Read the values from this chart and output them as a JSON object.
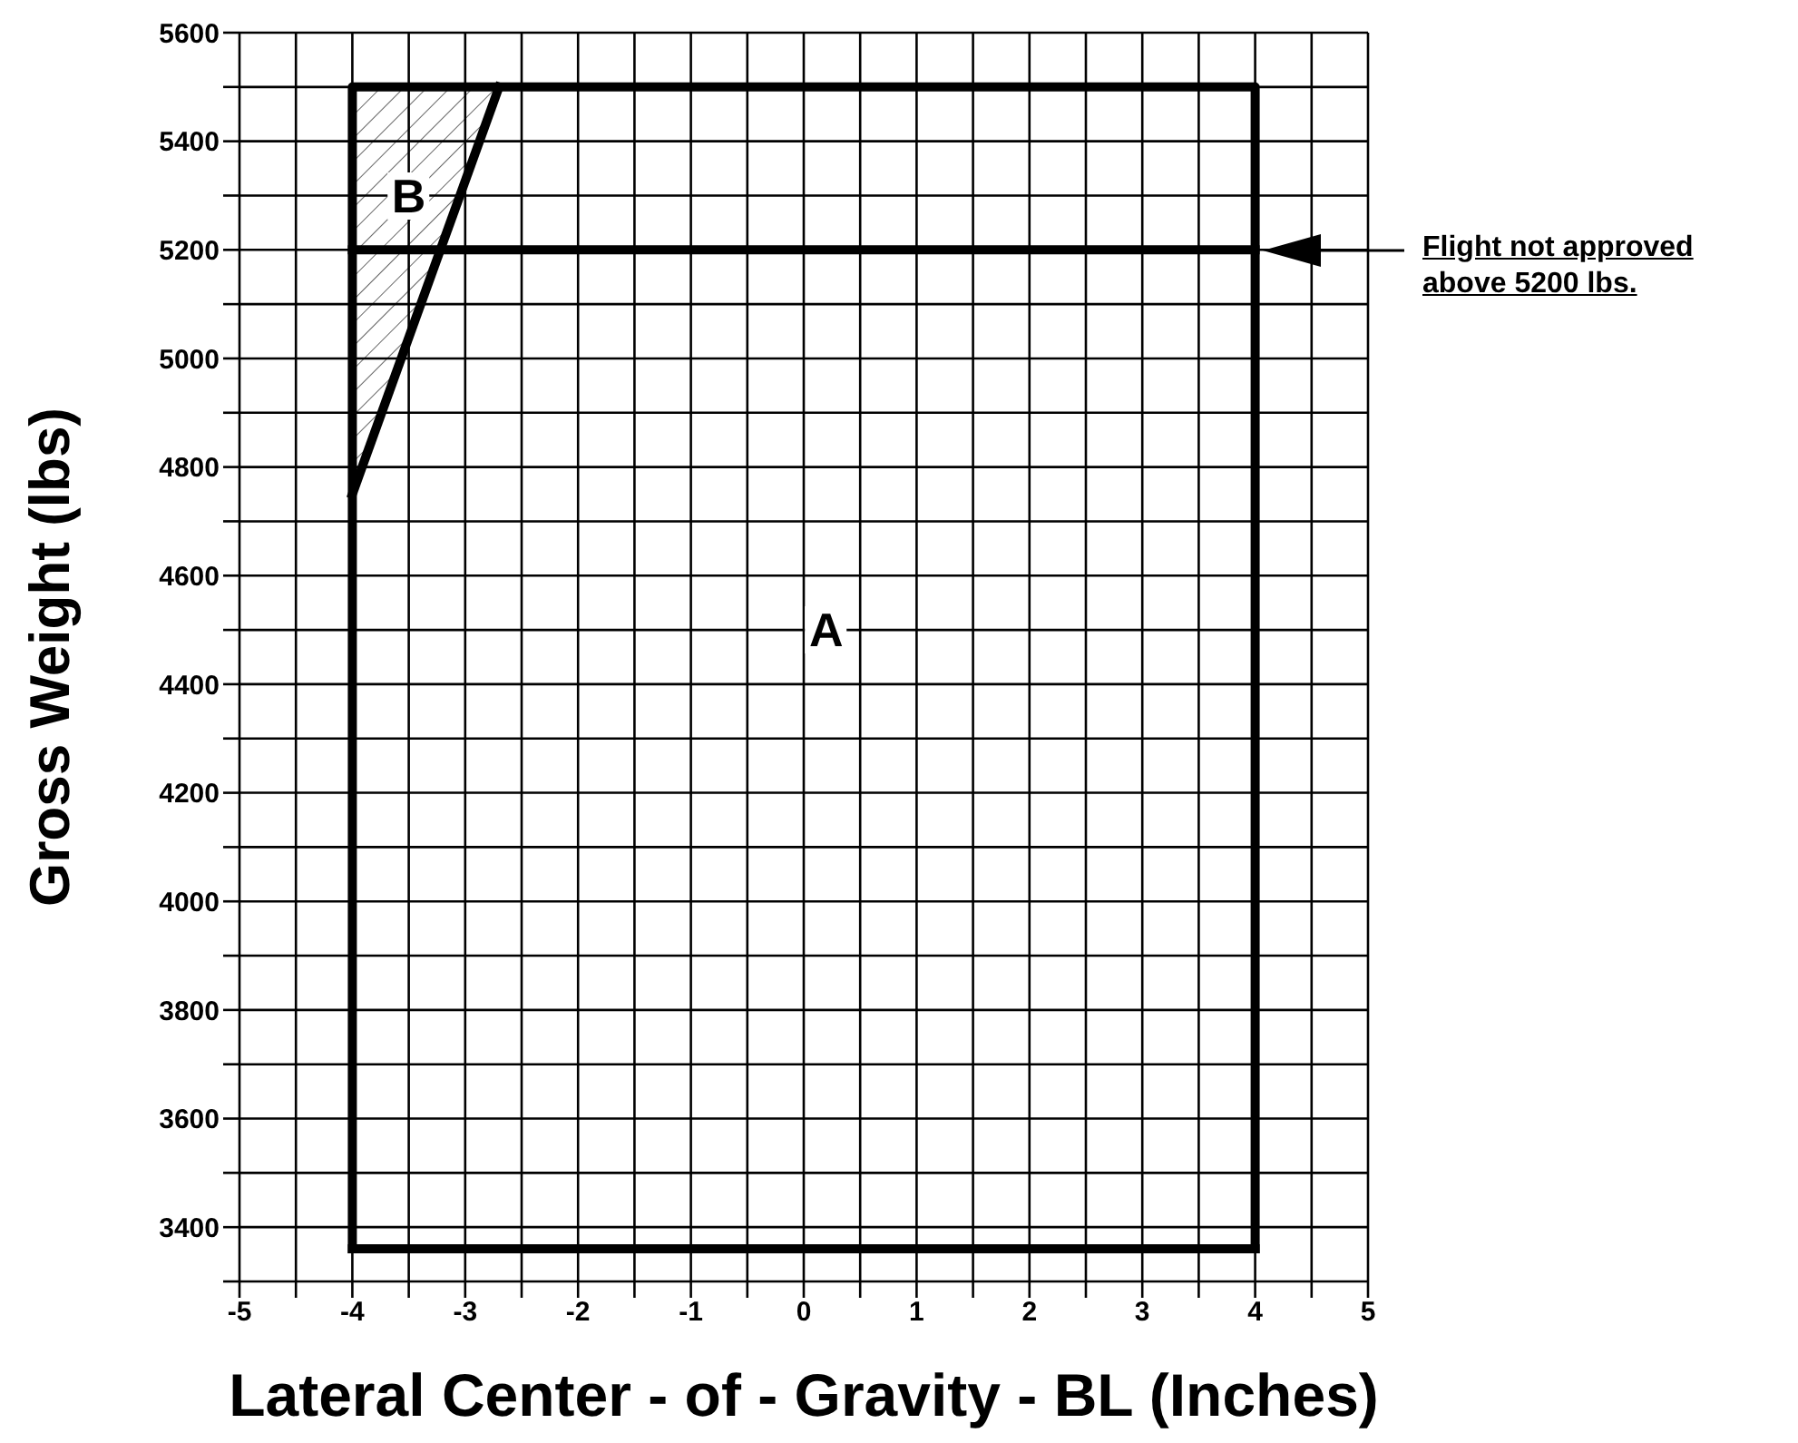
{
  "chart_data": {
    "type": "line",
    "xlabel": "Lateral Center - of - Gravity - BL (Inches)",
    "ylabel": "Gross Weight (lbs)",
    "xlim": [
      -5,
      5
    ],
    "ylim": [
      3300,
      5600
    ],
    "xticks": [
      -5,
      {
        "value": -4.5,
        "label": null
      },
      -4,
      {
        "value": -3.5,
        "label": null
      },
      -3,
      {
        "value": -2.5,
        "label": null
      },
      -2,
      {
        "value": -1.5,
        "label": null
      },
      -1,
      {
        "value": -0.5,
        "label": null
      },
      0,
      {
        "value": 0.5,
        "label": null
      },
      1,
      {
        "value": 1.5,
        "label": null
      },
      2,
      {
        "value": 2.5,
        "label": null
      },
      3,
      {
        "value": 3.5,
        "label": null
      },
      4,
      {
        "value": 4.5,
        "label": null
      },
      5
    ],
    "yticks": [
      {
        "value": 3300,
        "label": null
      },
      3400,
      {
        "value": 3500,
        "label": null
      },
      3600,
      {
        "value": 3700,
        "label": null
      },
      3800,
      {
        "value": 3900,
        "label": null
      },
      4000,
      {
        "value": 4100,
        "label": null
      },
      4200,
      {
        "value": 4300,
        "label": null
      },
      4400,
      {
        "value": 4500,
        "label": null
      },
      4600,
      {
        "value": 4700,
        "label": null
      },
      4800,
      {
        "value": 4900,
        "label": null
      },
      5000,
      {
        "value": 5100,
        "label": null
      },
      5200,
      {
        "value": 5300,
        "label": null
      },
      5400,
      {
        "value": 5500,
        "label": null
      },
      5600
    ],
    "grid": true,
    "marker": "none",
    "line_style": "solid",
    "series": [
      {
        "type": "line",
        "color": "#000000",
        "x": [
          -4,
          -4,
          4,
          4
        ],
        "values": [
          3360,
          5500,
          5500,
          3360
        ]
      },
      {
        "type": "line",
        "color": "#000000",
        "x": [
          -4,
          4
        ],
        "values": [
          3360,
          3360
        ]
      },
      {
        "type": "line",
        "color": "#000000",
        "x": [
          -4,
          4
        ],
        "values": [
          5200,
          5200
        ]
      },
      {
        "type": "line",
        "color": "#000000",
        "x": [
          -4,
          -2.7
        ],
        "values": [
          4750,
          5500
        ],
        "lower": [
          4750,
          5500
        ],
        "upper": [
          5500,
          5500
        ]
      }
    ],
    "annotations": [
      {
        "text": "A",
        "x": 0.2,
        "y": 4500
      },
      {
        "text": "B",
        "x": -3.5,
        "y": 5300
      },
      "Flight not approved above 5200 lbs."
    ]
  }
}
